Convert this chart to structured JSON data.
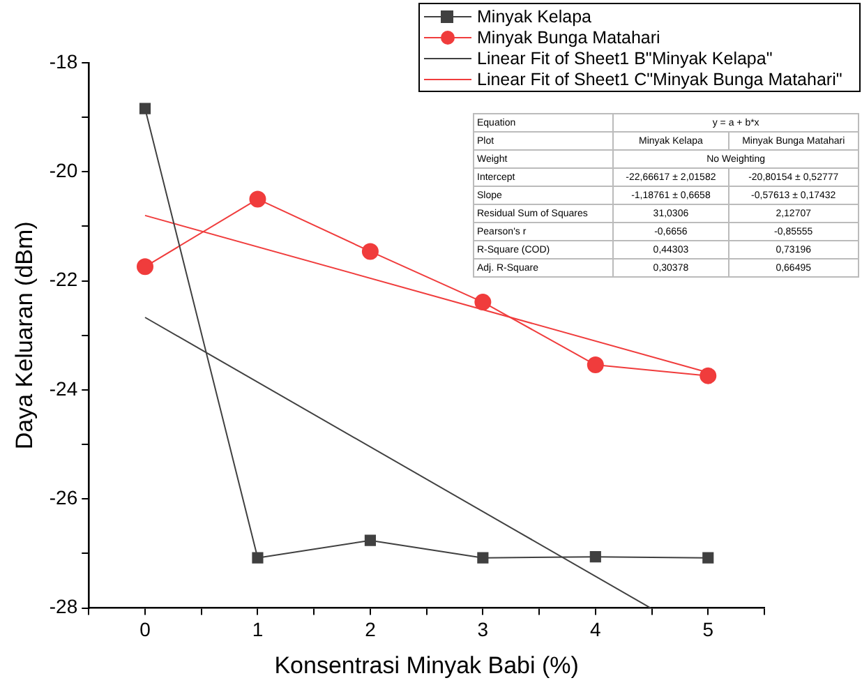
{
  "chart_data": {
    "type": "line",
    "xlabel": "Konsentrasi Minyak Babi (%)",
    "ylabel": "Daya Keluaran (dBm)",
    "x": [
      0,
      1,
      2,
      3,
      4,
      5
    ],
    "series": [
      {
        "name": "Minyak Kelapa",
        "color": "#404040",
        "marker": "square",
        "values": [
          -18.84,
          -27.08,
          -26.76,
          -27.08,
          -27.06,
          -27.08
        ]
      },
      {
        "name": "Minyak Bunga Matahari",
        "color": "#f03c3c",
        "marker": "circle",
        "values": [
          -21.74,
          -20.5,
          -21.46,
          -22.39,
          -23.54,
          -23.74
        ]
      },
      {
        "name": "Linear Fit of Sheet1 B\"Minyak Kelapa\"",
        "color": "#404040",
        "marker": "none",
        "x": [
          0,
          4.49
        ],
        "values": [
          -22.67,
          -28
        ]
      },
      {
        "name": "Linear Fit of Sheet1 C\"Minyak Bunga Matahari\"",
        "color": "#f03c3c",
        "marker": "none",
        "x": [
          0,
          5
        ],
        "values": [
          -20.8,
          -23.68
        ]
      }
    ],
    "xlim": [
      -0.5,
      5.5
    ],
    "xticks": [
      {
        "value": -0.5,
        "label": null
      },
      0,
      {
        "value": 0.5,
        "label": null
      },
      1,
      {
        "value": 1.5,
        "label": null
      },
      2,
      {
        "value": 2.5,
        "label": null
      },
      3,
      {
        "value": 3.5,
        "label": null
      },
      4,
      {
        "value": 4.5,
        "label": null
      },
      5,
      {
        "value": 5.5,
        "label": null
      }
    ],
    "ylim": [
      -28,
      -18
    ],
    "yticks": [
      -28,
      {
        "value": -27,
        "label": null
      },
      -26,
      {
        "value": -25,
        "label": null
      },
      -24,
      {
        "value": -23,
        "label": null
      },
      -22,
      {
        "value": -21,
        "label": null
      },
      -20,
      {
        "value": -19,
        "label": null
      },
      -18
    ],
    "legend": "top right",
    "grid": false,
    "line_style": "solid",
    "annotations": [
      "Equation",
      "y = a + b*x",
      "Plot",
      "Minyak Kelapa",
      "Minyak Bunga Matahari",
      "Weight",
      "No Weighting",
      "Intercept",
      "-22,66617 ± 2,01582",
      "-20,80154 ± 0,52777",
      "Slope",
      "-1,18761 ± 0,6658",
      "-0,57613 ± 0,17432",
      "Residual Sum of Squares",
      "31,0306",
      "2,12707",
      "Pearson's r",
      "-0,6656",
      "-0,85555",
      "R-Square (COD)",
      "0,44303",
      "0,73196",
      "Adj. R-Square",
      "0,30378",
      "0,66495"
    ]
  }
}
